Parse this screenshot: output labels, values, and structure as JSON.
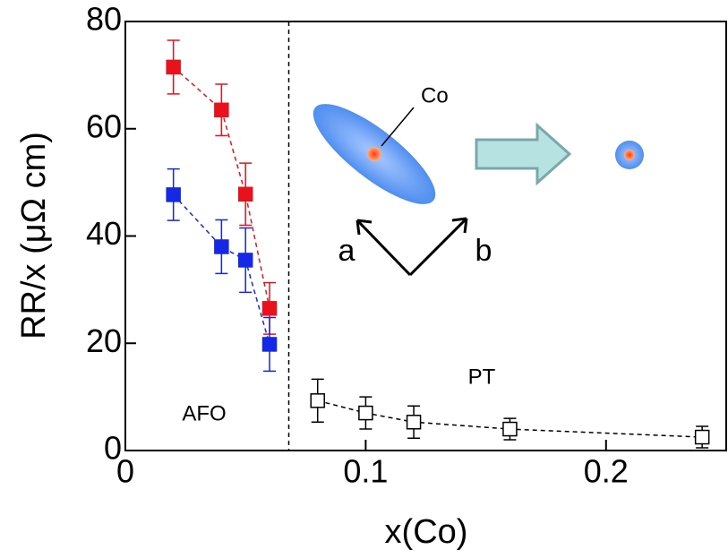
{
  "chart_data": {
    "type": "scatter",
    "xlabel": "x(Co)",
    "ylabel": "RR/x (μΩ cm)",
    "xlim": [
      0,
      0.25
    ],
    "ylim": [
      0,
      80
    ],
    "xticks": [
      0,
      0.1,
      0.2
    ],
    "yticks": [
      0,
      20,
      40,
      60,
      80
    ],
    "boundary_x": 0.068,
    "annotations": {
      "left_region": "AFO",
      "right_region": "PT",
      "dopant": "Co",
      "axis_a": "a",
      "axis_b": "b"
    },
    "series": [
      {
        "color": "#e8121c",
        "filled": true,
        "x": [
          0.02,
          0.04,
          0.05,
          0.06
        ],
        "values": [
          71.5,
          63.5,
          47.8,
          26.5
        ],
        "errors": [
          5,
          4.8,
          5.8,
          4.8
        ]
      },
      {
        "color": "#1428e6",
        "filled": true,
        "x": [
          0.02,
          0.04,
          0.05,
          0.06
        ],
        "values": [
          47.7,
          38,
          35.5,
          19.8
        ],
        "errors": [
          4.8,
          5,
          6,
          5
        ]
      },
      {
        "color": "#000000",
        "filled": false,
        "x": [
          0.08,
          0.1,
          0.12,
          0.16,
          0.24
        ],
        "values": [
          9.3,
          7,
          5.3,
          4,
          2.5
        ],
        "errors": [
          4,
          3,
          3,
          2,
          2
        ]
      }
    ]
  }
}
